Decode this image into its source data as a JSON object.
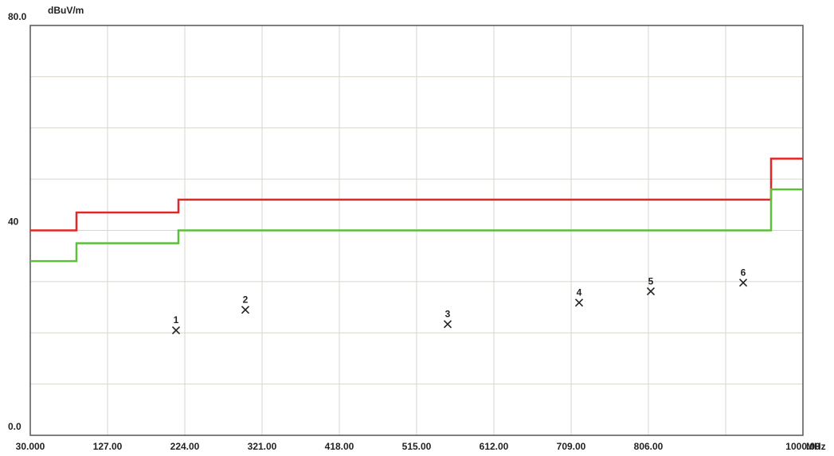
{
  "chart_data": {
    "type": "step-scatter",
    "y_unit": "dBuV/m",
    "x_unit": "MHz",
    "xlim": [
      30,
      1000
    ],
    "ylim": [
      0,
      80
    ],
    "xticks": [
      {
        "value": 30,
        "label": "30.000"
      },
      {
        "value": 127,
        "label": "127.00"
      },
      {
        "value": 224,
        "label": "224.00"
      },
      {
        "value": 321,
        "label": "321.00"
      },
      {
        "value": 418,
        "label": "418.00"
      },
      {
        "value": 515,
        "label": "515.00"
      },
      {
        "value": 612,
        "label": "612.00"
      },
      {
        "value": 709,
        "label": "709.00"
      },
      {
        "value": 806,
        "label": "806.00"
      },
      {
        "value": 1000,
        "label": "1000.00"
      }
    ],
    "xgrid": [
      903
    ],
    "yticks": [
      {
        "value": 0,
        "label": "0.0"
      },
      40,
      {
        "value": 80,
        "label": "80.0"
      }
    ],
    "ygrid": [
      10,
      20,
      30,
      50,
      60,
      70
    ],
    "grid": true,
    "series": [
      {
        "color": "#e02626",
        "x": [
          30,
          88,
          88,
          216,
          216,
          960,
          960,
          1000
        ],
        "values": [
          40,
          40,
          43.5,
          43.5,
          46,
          46,
          54,
          54
        ]
      },
      {
        "color": "#5cbf3a",
        "x": [
          30,
          88,
          88,
          216,
          216,
          960,
          960,
          1000
        ],
        "values": [
          34,
          34,
          37.5,
          37.5,
          40,
          40,
          48,
          48
        ]
      }
    ],
    "markers": {
      "labels": [
        "1",
        "2",
        "3",
        "4",
        "5",
        "6"
      ],
      "x": [
        213,
        300,
        554,
        719,
        809,
        925
      ],
      "values": [
        20.5,
        24.5,
        21.7,
        25.9,
        28.1,
        29.8
      ]
    }
  }
}
